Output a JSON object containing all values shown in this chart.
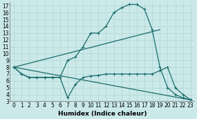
{
  "background_color": "#cbe9e9",
  "grid_color": "#b0d4d4",
  "line_color": "#1a6b6b",
  "xlabel": "Humidex (Indice chaleur)",
  "ylim": [
    3,
    17.5
  ],
  "xlim": [
    -0.5,
    23.5
  ],
  "yticks": [
    3,
    4,
    5,
    6,
    7,
    8,
    9,
    10,
    11,
    12,
    13,
    14,
    15,
    16,
    17
  ],
  "xticks": [
    0,
    1,
    2,
    3,
    4,
    5,
    6,
    7,
    8,
    9,
    10,
    11,
    12,
    13,
    14,
    15,
    16,
    17,
    18,
    19,
    20,
    21,
    22,
    23
  ],
  "curve1_x": [
    0,
    1,
    2,
    3,
    4,
    5,
    6,
    7,
    8,
    9,
    10,
    11,
    12,
    13,
    14,
    15,
    16,
    17,
    18,
    19,
    20,
    21,
    22,
    23
  ],
  "curve1_y": [
    8,
    7,
    6.5,
    6.5,
    6.5,
    6.5,
    6.5,
    9,
    9.5,
    11,
    13,
    13,
    14,
    16,
    16.7,
    17.2,
    17.2,
    16.5,
    13.5,
    8,
    5,
    4,
    3.5,
    3.2
  ],
  "curve2_x": [
    0,
    1,
    2,
    3,
    4,
    5,
    6,
    7,
    8,
    9,
    10,
    11,
    12,
    13,
    14,
    15,
    16,
    17,
    18,
    19,
    20,
    21,
    22,
    23
  ],
  "curve2_y": [
    8,
    7,
    6.5,
    6.5,
    6.5,
    6.5,
    6.5,
    3.5,
    5.5,
    6.5,
    6.7,
    6.8,
    7,
    7,
    7,
    7,
    7,
    7,
    7,
    7.5,
    8,
    5,
    4,
    3.2
  ],
  "line3_x": [
    0,
    19
  ],
  "line3_y": [
    8,
    13.5
  ],
  "line4_x": [
    0,
    23
  ],
  "line4_y": [
    8,
    3.2
  ],
  "font_size_label": 6.5,
  "font_size_tick": 5.5,
  "lw": 0.9,
  "marker_size": 3.5,
  "marker_ew": 0.8
}
